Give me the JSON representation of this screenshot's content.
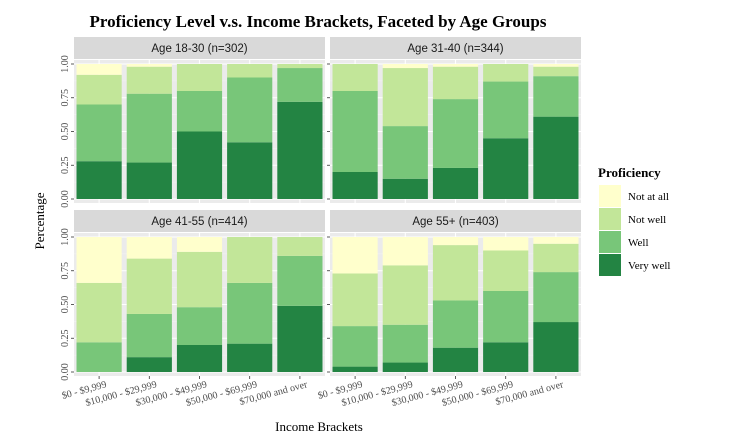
{
  "chart_data": {
    "type": "bar",
    "title": "Proficiency Level v.s. Income Brackets, Faceted by Age Groups",
    "xlabel": "Income Brackets",
    "ylabel": "Percentage",
    "ylim": [
      0,
      1
    ],
    "yticks": [
      "0.00",
      "0.25",
      "0.50",
      "0.75",
      "1.00"
    ],
    "grid": true,
    "legend": {
      "title": "Proficiency",
      "placement": "right",
      "entries": [
        "Not at all",
        "Not well",
        "Well",
        "Very well"
      ]
    },
    "categories": [
      "$0 - $9,999",
      "$10,000 - $29,999",
      "$30,000 - $49,999",
      "$50,000 - $69,999",
      "$70,000 and over"
    ],
    "series_colors": {
      "Not at all": "#ffffcc",
      "Not well": "#c2e699",
      "Well": "#78c679",
      "Very well": "#238443"
    },
    "facets": [
      {
        "label": "Age 18-30 (n=302)",
        "series": [
          {
            "name": "Very well",
            "values": [
              0.28,
              0.27,
              0.5,
              0.42,
              0.72
            ]
          },
          {
            "name": "Well",
            "values": [
              0.42,
              0.51,
              0.3,
              0.48,
              0.25
            ]
          },
          {
            "name": "Not well",
            "values": [
              0.22,
              0.2,
              0.2,
              0.1,
              0.03
            ]
          },
          {
            "name": "Not at all",
            "values": [
              0.08,
              0.02,
              0.0,
              0.0,
              0.0
            ]
          }
        ]
      },
      {
        "label": "Age 31-40 (n=344)",
        "series": [
          {
            "name": "Very well",
            "values": [
              0.2,
              0.15,
              0.23,
              0.45,
              0.61
            ]
          },
          {
            "name": "Well",
            "values": [
              0.6,
              0.39,
              0.51,
              0.42,
              0.3
            ]
          },
          {
            "name": "Not well",
            "values": [
              0.2,
              0.43,
              0.24,
              0.13,
              0.07
            ]
          },
          {
            "name": "Not at all",
            "values": [
              0.0,
              0.03,
              0.02,
              0.0,
              0.02
            ]
          }
        ]
      },
      {
        "label": "Age 41-55 (n=414)",
        "series": [
          {
            "name": "Very well",
            "values": [
              0.0,
              0.11,
              0.2,
              0.21,
              0.49
            ]
          },
          {
            "name": "Well",
            "values": [
              0.22,
              0.32,
              0.28,
              0.45,
              0.37
            ]
          },
          {
            "name": "Not well",
            "values": [
              0.44,
              0.41,
              0.41,
              0.34,
              0.14
            ]
          },
          {
            "name": "Not at all",
            "values": [
              0.34,
              0.16,
              0.11,
              0.0,
              0.0
            ]
          }
        ]
      },
      {
        "label": "Age 55+ (n=403)",
        "series": [
          {
            "name": "Very well",
            "values": [
              0.04,
              0.07,
              0.18,
              0.22,
              0.37
            ]
          },
          {
            "name": "Well",
            "values": [
              0.3,
              0.28,
              0.35,
              0.38,
              0.37
            ]
          },
          {
            "name": "Not well",
            "values": [
              0.39,
              0.44,
              0.41,
              0.3,
              0.21
            ]
          },
          {
            "name": "Not at all",
            "values": [
              0.27,
              0.21,
              0.06,
              0.1,
              0.05
            ]
          }
        ]
      }
    ]
  }
}
